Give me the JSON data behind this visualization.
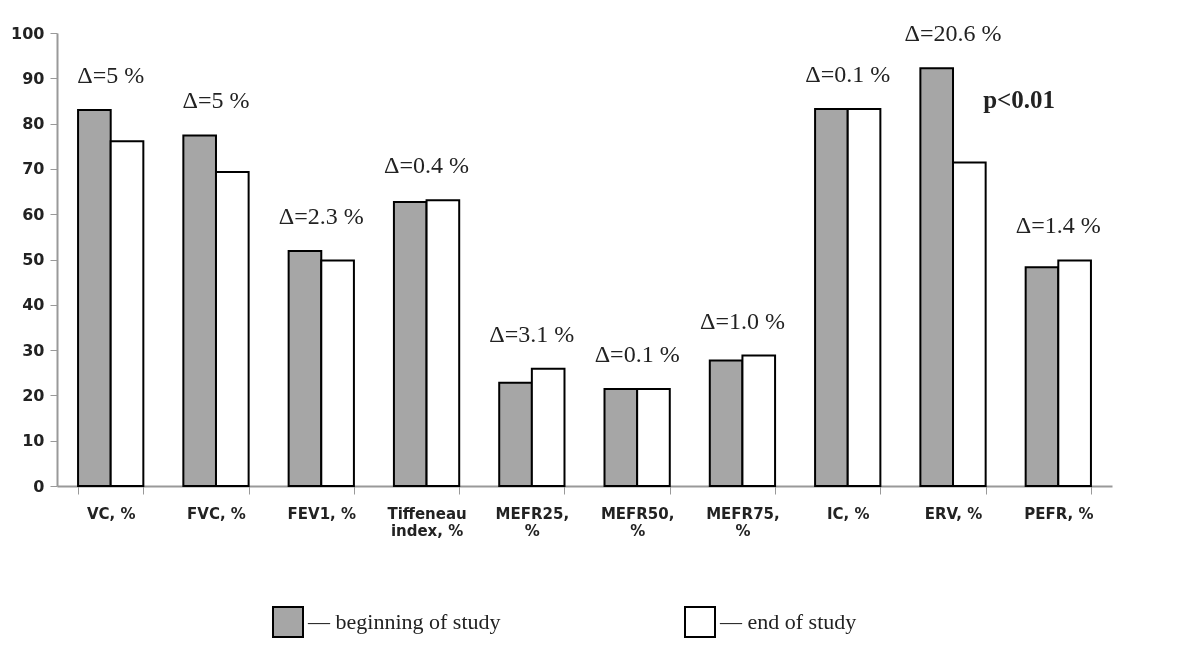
{
  "chart_data": {
    "type": "bar",
    "categories": [
      "VC, %",
      "FVC, %",
      "FEV1, %",
      "Tiffeneau index, %",
      "MEFR25, %",
      "MEFR50, %",
      "MEFR75, %",
      "IC, %",
      "ERV, %",
      "PEFR, %"
    ],
    "series": [
      {
        "name": "— beginning of study",
        "color": "#a6a6a6",
        "values": [
          83.0,
          77.4,
          51.9,
          62.7,
          22.8,
          21.4,
          27.7,
          83.2,
          92.2,
          48.3
        ]
      },
      {
        "name": "— end of study",
        "color": "#ffffff",
        "values": [
          76.1,
          69.3,
          49.8,
          63.1,
          25.9,
          21.4,
          28.8,
          83.2,
          71.4,
          49.8
        ]
      }
    ],
    "ylim": [
      0,
      100
    ],
    "yticks": [
      0,
      10,
      20,
      30,
      40,
      50,
      60,
      70,
      80,
      90,
      100
    ],
    "grid": false,
    "legend": "bottom",
    "annotations": [
      {
        "text": "Δ=5 %",
        "x": "VC, %",
        "y": 83.0
      },
      {
        "text": "Δ=5 %",
        "x": "FVC, %",
        "y": 77.4
      },
      {
        "text": "Δ=2.3 %",
        "x": "FEV1, %",
        "y": 51.9
      },
      {
        "text": "Δ=0.4 %",
        "x": "Tiffeneau index, %",
        "y": 63.1
      },
      {
        "text": "Δ=3.1 %",
        "x": "MEFR25, %",
        "y": 25.9
      },
      {
        "text": "Δ=0.1 %",
        "x": "MEFR50, %",
        "y": 21.4
      },
      {
        "text": "Δ=1.0 %",
        "x": "MEFR75, %",
        "y": 28.8
      },
      {
        "text": "Δ=0.1 %",
        "x": "IC, %",
        "y": 83.2
      },
      {
        "text": "Δ=20.6 %",
        "x": "ERV, %",
        "y": 92.2
      },
      "p<0.01",
      {
        "text": "Δ=1.4 %",
        "x": "PEFR, %",
        "y": 49.8
      }
    ]
  }
}
